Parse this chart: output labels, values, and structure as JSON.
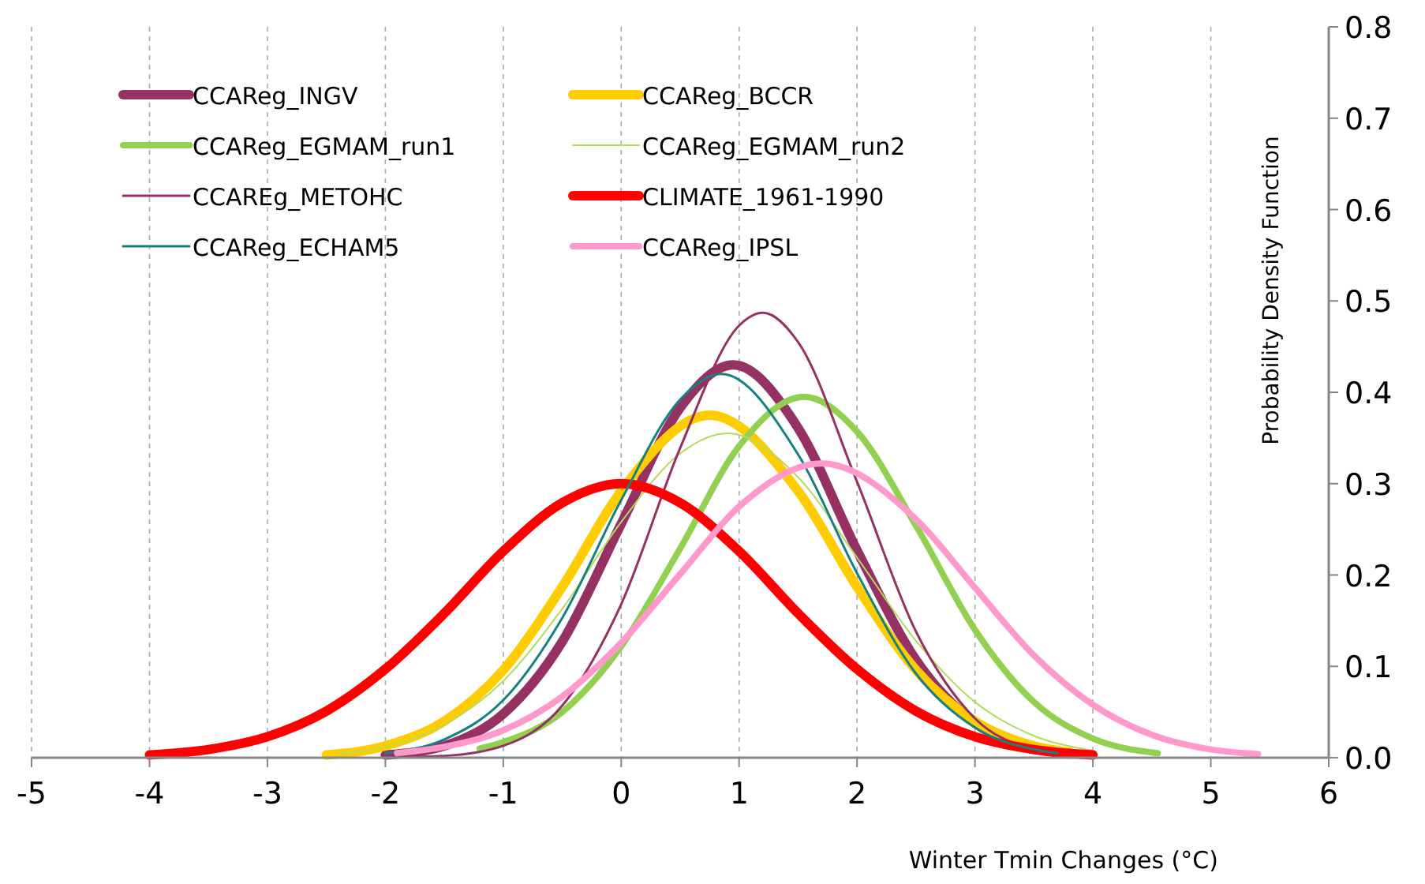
{
  "chart_data": {
    "type": "line",
    "xlabel": "Winter Tmin Changes (°C)",
    "ylabel": "Probability Density Function",
    "xlim": [
      -5,
      6
    ],
    "xticks": [
      -5,
      -4,
      -3,
      -2,
      -1,
      0,
      1,
      2,
      3,
      4,
      5,
      6
    ],
    "ylim": [
      0,
      0.8
    ],
    "yticks": [
      {
        "value": 0,
        "label": "0.0"
      },
      {
        "value": 0.1,
        "label": "0.1"
      },
      {
        "value": 0.2,
        "label": "0.2"
      },
      {
        "value": 0.3,
        "label": "0.3"
      },
      {
        "value": 0.4,
        "label": "0.4"
      },
      {
        "value": 0.5,
        "label": "0.5"
      },
      {
        "value": 0.6,
        "label": "0.6"
      },
      {
        "value": 0.7,
        "label": "0.7"
      },
      {
        "value": 0.8,
        "label": "0.8"
      }
    ],
    "grid": "x",
    "legend": "top left",
    "marker": "none",
    "line_style": "solid",
    "series": [
      {
        "name": "CCAReg_INGV",
        "color": "#953163",
        "x": [
          -2,
          -1.5,
          -1,
          -0.5,
          0,
          0.5,
          0.95,
          1.5,
          2,
          2.5,
          3,
          3.5,
          3.8
        ],
        "values": [
          0.003,
          0.013,
          0.048,
          0.127,
          0.256,
          0.383,
          0.43,
          0.361,
          0.227,
          0.107,
          0.038,
          0.01,
          0.004
        ]
      },
      {
        "name": "CCAReg_BCCR",
        "color": "#ffcc00",
        "x": [
          -2.5,
          -2,
          -1.5,
          -1,
          -0.5,
          0,
          0.75,
          1.5,
          2,
          2.5,
          3,
          3.5,
          3.8
        ],
        "values": [
          0.003,
          0.013,
          0.04,
          0.096,
          0.187,
          0.292,
          0.375,
          0.292,
          0.187,
          0.096,
          0.04,
          0.013,
          0.006
        ]
      },
      {
        "name": "CCAReg_EGMAM_run1",
        "color": "#92d050",
        "x": [
          -1.2,
          -1,
          -0.5,
          0,
          0.5,
          1,
          1.55,
          2,
          2.5,
          3,
          3.5,
          4,
          4.55
        ],
        "values": [
          0.01,
          0.017,
          0.05,
          0.122,
          0.229,
          0.341,
          0.395,
          0.357,
          0.254,
          0.14,
          0.061,
          0.021,
          0.005
        ]
      },
      {
        "name": "CCAReg_EGMAM_run2",
        "color": "#b2dd5a",
        "x": [
          -2.4,
          -2,
          -1.5,
          -1,
          -0.5,
          0,
          0.5,
          0.9,
          1.5,
          2,
          2.5,
          3,
          3.5,
          4
        ],
        "values": [
          0.005,
          0.012,
          0.036,
          0.084,
          0.163,
          0.258,
          0.333,
          0.355,
          0.307,
          0.219,
          0.128,
          0.061,
          0.024,
          0.008
        ]
      },
      {
        "name": "CCAREg_METOHC",
        "color": "#953163",
        "x": [
          -1.8,
          -1.5,
          -1,
          -0.5,
          0,
          0.5,
          1,
          1.2,
          1.5,
          2,
          2.5,
          3,
          3.5,
          3.8
        ],
        "values": [
          0.001,
          0.002,
          0.013,
          0.057,
          0.168,
          0.339,
          0.473,
          0.487,
          0.455,
          0.302,
          0.138,
          0.043,
          0.009,
          0.003
        ]
      },
      {
        "name": "CLIMATE_1961-1990",
        "color": "#ff0000",
        "x": [
          -4,
          -3.5,
          -3,
          -2.5,
          -2,
          -1.5,
          -1,
          -0.5,
          0,
          0.5,
          1,
          1.5,
          2,
          2.5,
          3,
          3.5,
          4
        ],
        "values": [
          0.003,
          0.009,
          0.023,
          0.051,
          0.097,
          0.158,
          0.226,
          0.279,
          0.3,
          0.279,
          0.226,
          0.158,
          0.097,
          0.051,
          0.023,
          0.009,
          0.003
        ]
      },
      {
        "name": "CCAReg_ECHAM5",
        "color": "#178080",
        "x": [
          -2,
          -1.5,
          -1,
          -0.5,
          0,
          0.5,
          0.85,
          1.5,
          2,
          2.5,
          3,
          3.5,
          3.7
        ],
        "values": [
          0.005,
          0.02,
          0.063,
          0.153,
          0.282,
          0.392,
          0.42,
          0.332,
          0.202,
          0.092,
          0.033,
          0.009,
          0.005
        ]
      },
      {
        "name": "CCAReg_IPSL",
        "color": "#ff99cc",
        "x": [
          -1.9,
          -1.5,
          -1,
          -0.5,
          0,
          0.5,
          1,
          1.7,
          2.5,
          3,
          3.5,
          4,
          4.5,
          5,
          5.4
        ],
        "values": [
          0.005,
          0.012,
          0.03,
          0.067,
          0.126,
          0.201,
          0.275,
          0.322,
          0.261,
          0.186,
          0.112,
          0.058,
          0.025,
          0.009,
          0.004
        ]
      }
    ]
  }
}
